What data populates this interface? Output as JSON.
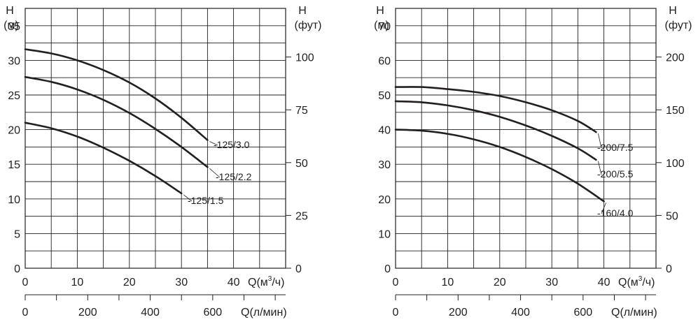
{
  "chart_data": [
    {
      "type": "line",
      "title": "",
      "xlabel": "Q(м³/ч)",
      "xlabel_parts": {
        "pre": "Q(м",
        "sup": "3",
        "post": "/ч)"
      },
      "x2label": "Q(л/мин)",
      "ylabel_left": {
        "line1": "H",
        "line2": "(м)"
      },
      "ylabel_right": {
        "line1": "H",
        "line2": "(фут)"
      },
      "xlim": [
        0,
        50
      ],
      "ylim": [
        0,
        37.5
      ],
      "x_ticks": [
        0,
        10,
        20,
        30,
        40
      ],
      "x_tick_labels": [
        "0",
        "10",
        "20",
        "30",
        "40"
      ],
      "y_ticks": [
        0,
        5,
        10,
        15,
        20,
        25,
        30,
        35
      ],
      "y_tick_labels": [
        "0",
        "5",
        "10",
        "15",
        "20",
        "25",
        "30",
        "35"
      ],
      "y2_ticks_ft": [
        0,
        25,
        50,
        75,
        100
      ],
      "y2_tick_labels": [
        "0",
        "25",
        "50",
        "75",
        "100"
      ],
      "x2_ticks_lpm": [
        0,
        200,
        400,
        600
      ],
      "x2_tick_labels": [
        "0",
        "200",
        "400",
        "600"
      ],
      "series": [
        {
          "name": "-125/3.0",
          "x": [
            0,
            5,
            10,
            15,
            20,
            25,
            30,
            35
          ],
          "y": [
            31.6,
            31.0,
            30.0,
            28.6,
            26.8,
            24.5,
            21.7,
            18.5
          ]
        },
        {
          "name": "-125/2.2",
          "x": [
            0,
            5,
            10,
            15,
            20,
            25,
            30,
            35
          ],
          "y": [
            27.6,
            26.9,
            25.8,
            24.3,
            22.4,
            20.1,
            17.5,
            14.6
          ]
        },
        {
          "name": "-125/1.5",
          "x": [
            0,
            5,
            10,
            15,
            20,
            25,
            30
          ],
          "y": [
            21.0,
            20.2,
            19.0,
            17.4,
            15.5,
            13.3,
            10.8
          ]
        }
      ]
    },
    {
      "type": "line",
      "title": "",
      "xlabel": "Q(м³/ч)",
      "xlabel_parts": {
        "pre": "Q(м",
        "sup": "3",
        "post": "/ч)"
      },
      "x2label": "Q(л/мин)",
      "ylabel_left": {
        "line1": "H",
        "line2": "(м)"
      },
      "ylabel_right": {
        "line1": "H",
        "line2": "(фут)"
      },
      "xlim": [
        0,
        50
      ],
      "ylim": [
        0,
        75
      ],
      "x_ticks": [
        0,
        10,
        20,
        30,
        40
      ],
      "x_tick_labels": [
        "0",
        "10",
        "20",
        "30",
        "40"
      ],
      "y_ticks": [
        0,
        10,
        20,
        30,
        40,
        50,
        60,
        70
      ],
      "y_tick_labels": [
        "0",
        "10",
        "20",
        "30",
        "40",
        "50",
        "60",
        "70"
      ],
      "y2_ticks_ft": [
        0,
        50,
        100,
        150,
        200
      ],
      "y2_tick_labels": [
        "0",
        "50",
        "100",
        "150",
        "200"
      ],
      "x2_ticks_lpm": [
        0,
        200,
        400,
        600
      ],
      "x2_tick_labels": [
        "0",
        "200",
        "400",
        "600"
      ],
      "series": [
        {
          "name": "-200/7.5",
          "x": [
            0,
            5,
            10,
            15,
            20,
            25,
            30,
            35,
            38.5
          ],
          "y": [
            52.3,
            52.3,
            51.7,
            50.9,
            49.7,
            47.9,
            45.6,
            42.5,
            39.3
          ]
        },
        {
          "name": "-200/5.5",
          "x": [
            0,
            5,
            10,
            15,
            20,
            25,
            30,
            35,
            38.5
          ],
          "y": [
            48.2,
            47.9,
            47.0,
            45.6,
            43.7,
            41.2,
            38.2,
            34.6,
            31.3
          ]
        },
        {
          "name": "-160/4.0",
          "x": [
            0,
            5,
            10,
            15,
            20,
            25,
            30,
            35,
            40
          ],
          "y": [
            40.0,
            39.7,
            38.8,
            37.2,
            35.0,
            32.1,
            28.6,
            24.4,
            19.3
          ]
        }
      ]
    }
  ]
}
